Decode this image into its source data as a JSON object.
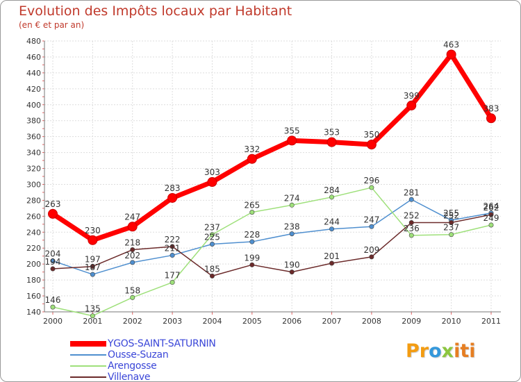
{
  "chart_data": {
    "type": "line",
    "title": "Evolution des Impôts locaux par Habitant",
    "subtitle": "(en € et par an)",
    "xlabel": "",
    "ylabel": "",
    "ylim": [
      140,
      480
    ],
    "ytick_step": 20,
    "categories": [
      "2000",
      "2001",
      "2002",
      "2003",
      "2004",
      "2005",
      "2006",
      "2007",
      "2008",
      "2009",
      "2010",
      "2011"
    ],
    "series": [
      {
        "name": "YGOS-SAINT-SATURNIN",
        "color": "#ff0000",
        "values": [
          263,
          230,
          247,
          283,
          303,
          332,
          355,
          353,
          350,
          399,
          463,
          383
        ],
        "labels": [
          "263",
          "230",
          "247",
          "283",
          "303",
          "332",
          "355",
          "353",
          "350",
          "399",
          "463",
          "383"
        ]
      },
      {
        "name": "Ousse-Suzan",
        "color": "#4f8fcf",
        "values": [
          204,
          187,
          202,
          211,
          225,
          228,
          238,
          244,
          247,
          281,
          255,
          264
        ],
        "labels": [
          "204",
          "187",
          "202",
          "211",
          "225",
          "228",
          "238",
          "244",
          "247",
          "281",
          "255",
          "264"
        ]
      },
      {
        "name": "Arengosse",
        "color": "#9ee07a",
        "values": [
          146,
          135,
          158,
          177,
          237,
          265,
          274,
          284,
          296,
          236,
          237,
          249
        ],
        "labels": [
          "146",
          "135",
          "158",
          "177",
          "237",
          "265",
          "274",
          "284",
          "296",
          "236",
          "237",
          "249"
        ]
      },
      {
        "name": "Villenave",
        "color": "#6b2a2a",
        "values": [
          194,
          197,
          218,
          222,
          185,
          199,
          190,
          201,
          209,
          252,
          252,
          262
        ],
        "labels": [
          "194",
          "197",
          "218",
          "222",
          "185",
          "199",
          "190",
          "201",
          "209",
          "252",
          "252",
          "262"
        ]
      }
    ],
    "legend_position": "bottom-left",
    "grid": true
  },
  "logo": {
    "p1": "Pr",
    "p2": "o",
    "p3": "x",
    "p4": "iti"
  }
}
